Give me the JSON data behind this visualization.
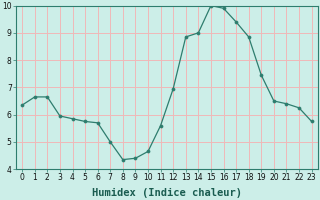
{
  "x": [
    0,
    1,
    2,
    3,
    4,
    5,
    6,
    7,
    8,
    9,
    10,
    11,
    12,
    13,
    14,
    15,
    16,
    17,
    18,
    19,
    20,
    21,
    22,
    23
  ],
  "y": [
    6.35,
    6.65,
    6.65,
    5.95,
    5.85,
    5.75,
    5.7,
    5.0,
    4.35,
    4.4,
    4.65,
    5.6,
    6.95,
    8.85,
    9.0,
    10.0,
    9.9,
    9.4,
    8.85,
    7.45,
    6.5,
    6.4,
    6.25,
    5.75
  ],
  "line_color": "#2e7d6e",
  "marker": "o",
  "marker_size": 2.2,
  "bg_color": "#cceee8",
  "grid_color": "#f0b8b8",
  "xlabel": "Humidex (Indice chaleur)",
  "ylim": [
    4,
    10
  ],
  "xlim": [
    -0.5,
    23.5
  ],
  "yticks": [
    4,
    5,
    6,
    7,
    8,
    9,
    10
  ],
  "xticks": [
    0,
    1,
    2,
    3,
    4,
    5,
    6,
    7,
    8,
    9,
    10,
    11,
    12,
    13,
    14,
    15,
    16,
    17,
    18,
    19,
    20,
    21,
    22,
    23
  ],
  "tick_fontsize": 5.5,
  "xlabel_fontsize": 7.5
}
